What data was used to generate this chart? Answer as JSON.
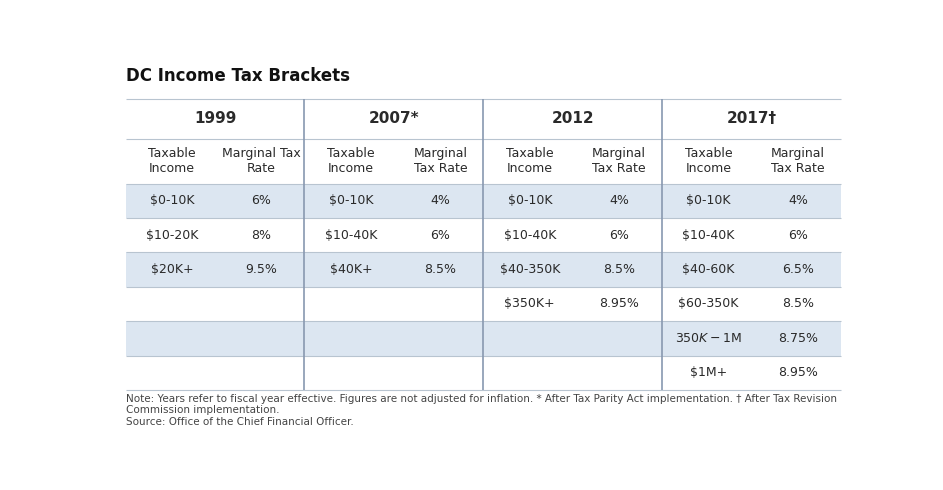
{
  "title": "DC Income Tax Brackets",
  "title_fontsize": 12,
  "background_color": "#ffffff",
  "cell_bg_light": "#dce6f1",
  "cell_bg_white": "#ffffff",
  "year_headers": [
    "1999",
    "2007*",
    "2012",
    "2017†"
  ],
  "col_headers": [
    [
      "Taxable\nIncome",
      "Marginal Tax\nRate"
    ],
    [
      "Taxable\nIncome",
      "Marginal\nTax Rate"
    ],
    [
      "Taxable\nIncome",
      "Marginal\nTax Rate"
    ],
    [
      "Taxable\nIncome",
      "Marginal\nTax Rate"
    ]
  ],
  "data": {
    "1999": [
      [
        "$0-10K",
        "6%"
      ],
      [
        "$10-20K",
        "8%"
      ],
      [
        "$20K+",
        "9.5%"
      ],
      [
        "",
        ""
      ],
      [
        "",
        ""
      ],
      [
        "",
        ""
      ]
    ],
    "2007": [
      [
        "$0-10K",
        "4%"
      ],
      [
        "$10-40K",
        "6%"
      ],
      [
        "$40K+",
        "8.5%"
      ],
      [
        "",
        ""
      ],
      [
        "",
        ""
      ],
      [
        "",
        ""
      ]
    ],
    "2012": [
      [
        "$0-10K",
        "4%"
      ],
      [
        "$10-40K",
        "6%"
      ],
      [
        "$40-350K",
        "8.5%"
      ],
      [
        "$350K+",
        "8.95%"
      ],
      [
        "",
        ""
      ],
      [
        "",
        ""
      ]
    ],
    "2017": [
      [
        "$0-10K",
        "4%"
      ],
      [
        "$10-40K",
        "6%"
      ],
      [
        "$40-60K",
        "6.5%"
      ],
      [
        "$60-350K",
        "8.5%"
      ],
      [
        "$350K-$1M",
        "8.75%"
      ],
      [
        "$1M+",
        "8.95%"
      ]
    ]
  },
  "note_text": "Note: Years refer to fiscal year effective. Figures are not adjusted for inflation. * After Tax Parity Act implementation. † After Tax Revision\nCommission implementation.\nSource: Office of the Chief Financial Officer.",
  "note_fontsize": 7.5,
  "data_fontsize": 9,
  "header_fontsize": 9,
  "year_fontsize": 11,
  "line_color": "#b8c4d0",
  "div_line_color": "#8898b0",
  "text_color": "#2a2a2a"
}
